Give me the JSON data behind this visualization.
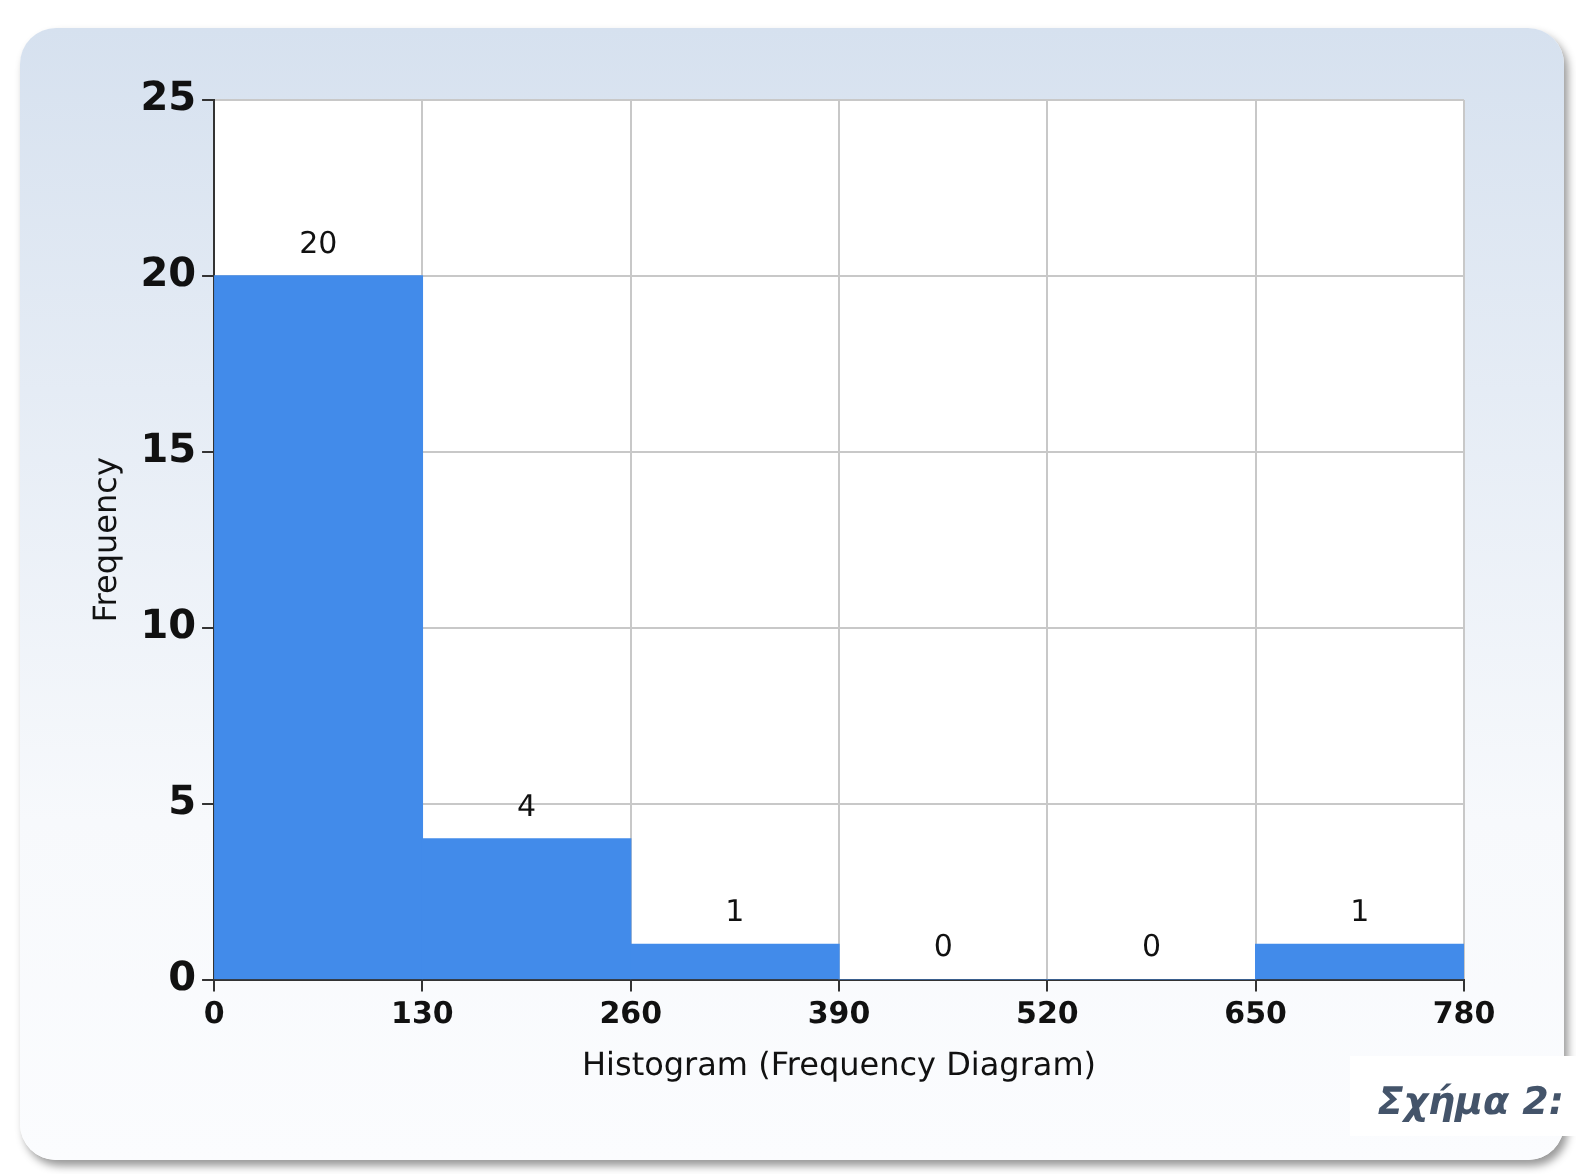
{
  "chart_data": {
    "type": "histogram",
    "xlabel": "Histogram (Frequency Diagram)",
    "ylabel": "Frequency",
    "bins": [
      0,
      130,
      260,
      390,
      520,
      650,
      780
    ],
    "values": [
      20,
      4,
      1,
      0,
      0,
      1
    ],
    "color": "#428bea",
    "xlim": [
      0,
      780
    ],
    "xticks": [
      0,
      130,
      260,
      390,
      520,
      650,
      780
    ],
    "ylim": [
      0,
      25
    ],
    "yticks": [
      0,
      5,
      10,
      15,
      20,
      25
    ],
    "grid": true,
    "data_labels": true,
    "annotations": [
      "Σχήμα 2:"
    ]
  }
}
